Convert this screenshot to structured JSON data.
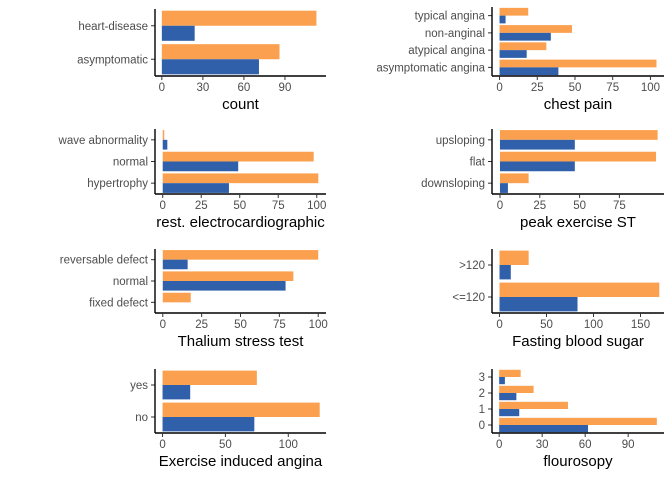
{
  "colors": {
    "orange": "#FBA04E",
    "blue": "#3060AA"
  },
  "chart_data": [
    {
      "type": "bar",
      "orientation": "horizontal",
      "xlabel": "count",
      "categories": [
        "asymptomatic",
        "heart-disease"
      ],
      "series": [
        {
          "color": "orange",
          "values": [
            86,
            113
          ]
        },
        {
          "color": "blue",
          "values": [
            71,
            24
          ]
        }
      ],
      "xlim": [
        -5,
        120
      ],
      "xticks": [
        0,
        30,
        60,
        90
      ]
    },
    {
      "type": "bar",
      "orientation": "horizontal",
      "xlabel": "chest pain",
      "categories": [
        "asymptomatic angina",
        "atypical angina",
        "non-anginal",
        "typical angina"
      ],
      "series": [
        {
          "color": "orange",
          "values": [
            104,
            31,
            48,
            19
          ]
        },
        {
          "color": "blue",
          "values": [
            39,
            18,
            34,
            4
          ]
        }
      ],
      "xlim": [
        -5,
        109
      ],
      "xticks": [
        0,
        25,
        50,
        75,
        100
      ]
    },
    {
      "type": "bar",
      "orientation": "horizontal",
      "xlabel": "rest. electrocardiographic",
      "categories": [
        "hypertrophy",
        "normal",
        "wave abnormality"
      ],
      "series": [
        {
          "color": "orange",
          "values": [
            101,
            98,
            1
          ]
        },
        {
          "color": "blue",
          "values": [
            43,
            49,
            3
          ]
        }
      ],
      "xlim": [
        -5,
        106
      ],
      "xticks": [
        0,
        25,
        50,
        75,
        100
      ]
    },
    {
      "type": "bar",
      "orientation": "horizontal",
      "xlabel": "peak exercise ST",
      "categories": [
        "downsloping",
        "flat",
        "upsloping"
      ],
      "series": [
        {
          "color": "orange",
          "values": [
            18,
            98,
            99
          ]
        },
        {
          "color": "blue",
          "values": [
            5,
            47,
            47
          ]
        }
      ],
      "xlim": [
        -5,
        103
      ],
      "xticks": [
        0,
        25,
        50,
        75
      ]
    },
    {
      "type": "bar",
      "orientation": "horizontal",
      "xlabel": "Thalium stress test",
      "categories": [
        "fixed defect",
        "normal",
        "reversable defect"
      ],
      "series": [
        {
          "color": "orange",
          "values": [
            18,
            84,
            100
          ]
        },
        {
          "color": "blue",
          "values": [
            0,
            79,
            16
          ]
        }
      ],
      "xlim": [
        -5,
        105
      ],
      "xticks": [
        0,
        25,
        50,
        75,
        100
      ]
    },
    {
      "type": "bar",
      "orientation": "horizontal",
      "xlabel": "Fasting blood sugar",
      "categories": [
        "<=120",
        ">120"
      ],
      "series": [
        {
          "color": "orange",
          "values": [
            170,
            31
          ]
        },
        {
          "color": "blue",
          "values": [
            83,
            12
          ]
        }
      ],
      "xlim": [
        -8,
        175
      ],
      "xticks": [
        0,
        50,
        100,
        150
      ]
    },
    {
      "type": "bar",
      "orientation": "horizontal",
      "xlabel": "Exercise induced angina",
      "categories": [
        "no",
        "yes"
      ],
      "series": [
        {
          "color": "orange",
          "values": [
            125,
            75
          ]
        },
        {
          "color": "blue",
          "values": [
            73,
            22
          ]
        }
      ],
      "xlim": [
        -6,
        130
      ],
      "xticks": [
        0,
        50,
        100
      ]
    },
    {
      "type": "bar",
      "orientation": "horizontal",
      "xlabel": "flourosopy",
      "categories": [
        "0",
        "1",
        "2",
        "3"
      ],
      "series": [
        {
          "color": "orange",
          "values": [
            110,
            48,
            24,
            15
          ]
        },
        {
          "color": "blue",
          "values": [
            62,
            14,
            12,
            4
          ]
        }
      ],
      "xlim": [
        -5,
        115
      ],
      "xticks": [
        0,
        30,
        60,
        90
      ]
    }
  ]
}
